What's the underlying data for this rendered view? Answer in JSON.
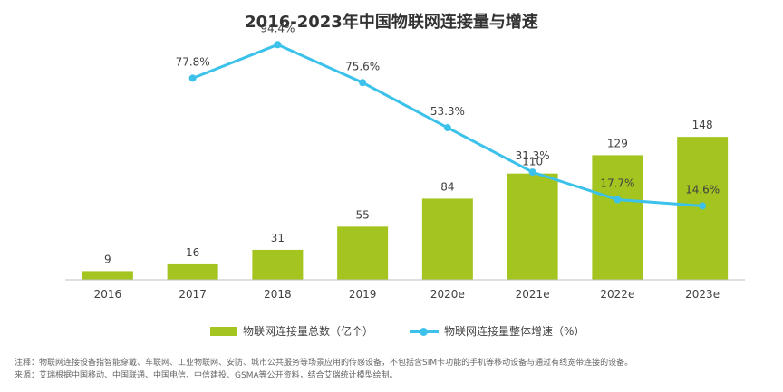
{
  "colors": {
    "bar": "#a4c520",
    "line": "#3cc2ea",
    "axis": "#bfbfbf",
    "text": "#404040"
  },
  "legend": {
    "bar_label": "物联网连接量总数（亿个）",
    "line_label": "物联网连接量整体增速（%）"
  },
  "notes": {
    "note": "注释：物联网连接设备指智能穿戴、车联网、工业物联网、安防、城市公共服务等场景应用的传感设备，不包括含SIM卡功能的手机等移动设备与通过有线宽带连接的设备。",
    "source": "来源：艾瑞根据中国移动、中国联通、中国电信、中信建投、GSMA等公开资料，结合艾瑞统计模型绘制。"
  },
  "chart_data": {
    "type": "bar",
    "title": "2016-2023年中国物联网连接量与增速",
    "categories": [
      "2016",
      "2017",
      "2018",
      "2019",
      "2020e",
      "2021e",
      "2022e",
      "2023e"
    ],
    "series": [
      {
        "name": "物联网连接量总数（亿个）",
        "type": "bar",
        "values": [
          9,
          16,
          31,
          55,
          84,
          110,
          129,
          148
        ]
      },
      {
        "name": "物联网连接量整体增速（%）",
        "type": "line",
        "values": [
          null,
          77.8,
          94.4,
          75.6,
          53.3,
          31.3,
          17.7,
          14.6
        ],
        "labels": [
          null,
          "77.8%",
          "94.4%",
          "75.6%",
          "53.3%",
          "31.3%",
          "17.7%",
          "14.6%"
        ]
      }
    ],
    "bar_ylim": [
      0,
      160
    ],
    "line_ylim": [
      0,
      100
    ],
    "grid": false,
    "legend_position": "bottom"
  }
}
